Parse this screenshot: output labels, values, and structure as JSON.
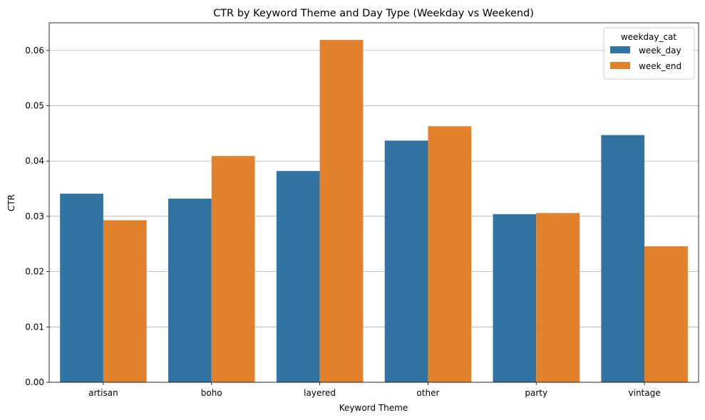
{
  "chart_data": {
    "type": "bar",
    "title": "CTR by Keyword Theme and Day Type (Weekday vs Weekend)",
    "xlabel": "Keyword Theme",
    "ylabel": "CTR",
    "categories": [
      "artisan",
      "boho",
      "layered",
      "other",
      "party",
      "vintage"
    ],
    "series": [
      {
        "name": "week_day",
        "color": "#3274a1",
        "values": [
          0.0341,
          0.0332,
          0.0382,
          0.0437,
          0.0304,
          0.0447
        ]
      },
      {
        "name": "week_end",
        "color": "#e1812c",
        "values": [
          0.0293,
          0.0409,
          0.0619,
          0.0463,
          0.0306,
          0.0246
        ]
      }
    ],
    "ylim": [
      0,
      0.065
    ],
    "yticks": [
      0.0,
      0.01,
      0.02,
      0.03,
      0.04,
      0.05,
      0.06
    ],
    "ytick_labels": [
      "0.00",
      "0.01",
      "0.02",
      "0.03",
      "0.04",
      "0.05",
      "0.06"
    ],
    "grid": "y",
    "legend": {
      "title": "weekday_cat",
      "position": "top-right"
    }
  }
}
